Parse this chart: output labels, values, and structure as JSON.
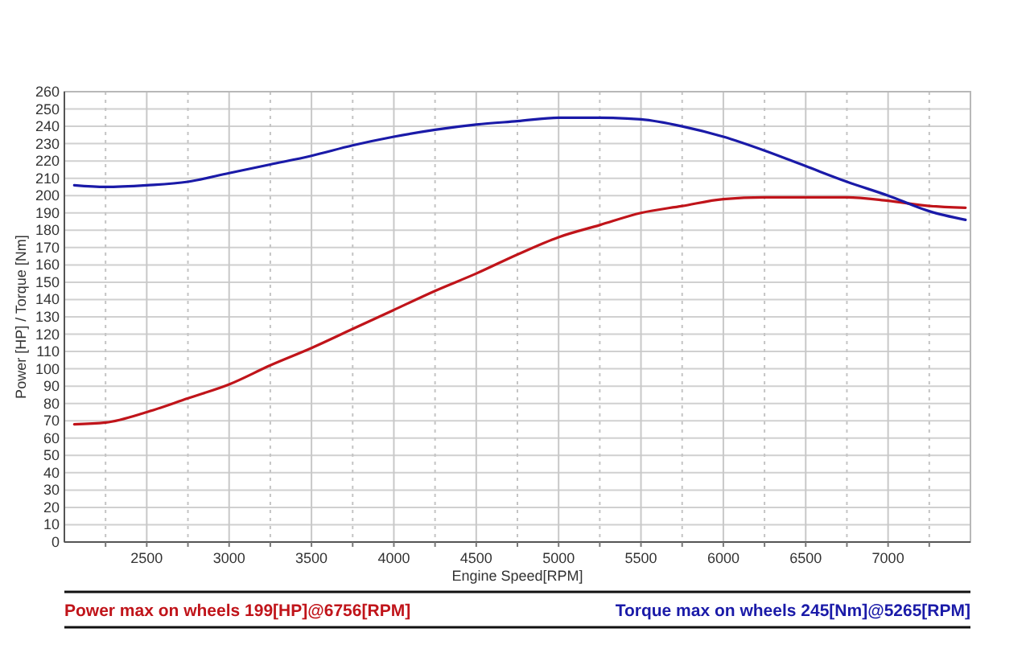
{
  "chart_data": {
    "type": "line",
    "xlabel": "Engine Speed[RPM]",
    "ylabel": "Power [HP] / Torque [Nm]",
    "xlim": [
      2000,
      7500
    ],
    "ylim": [
      0,
      260
    ],
    "xticks": [
      {
        "value": 2250,
        "label": null
      },
      2500,
      {
        "value": 2750,
        "label": null
      },
      3000,
      {
        "value": 3250,
        "label": null
      },
      3500,
      {
        "value": 3750,
        "label": null
      },
      4000,
      {
        "value": 4250,
        "label": null
      },
      4500,
      {
        "value": 4750,
        "label": null
      },
      5000,
      {
        "value": 5250,
        "label": null
      },
      5500,
      {
        "value": 5750,
        "label": null
      },
      6000,
      {
        "value": 6250,
        "label": null
      },
      6500,
      {
        "value": 6750,
        "label": null
      },
      7000,
      {
        "value": 7250,
        "label": null
      }
    ],
    "yticks": [
      0,
      10,
      20,
      30,
      40,
      50,
      60,
      70,
      80,
      90,
      100,
      110,
      120,
      130,
      140,
      150,
      160,
      170,
      180,
      190,
      200,
      210,
      220,
      230,
      240,
      250,
      260
    ],
    "grid": true,
    "series": [
      {
        "color": "#c0141a",
        "x": [
          2060,
          2250,
          2500,
          2750,
          3000,
          3250,
          3500,
          3750,
          4000,
          4250,
          4500,
          4750,
          5000,
          5250,
          5500,
          5750,
          6000,
          6250,
          6500,
          6750,
          7000,
          7250,
          7470
        ],
        "values": [
          68,
          69,
          75,
          83,
          91,
          102,
          112,
          123,
          134,
          145,
          155,
          166,
          176,
          183,
          190,
          194,
          198,
          199,
          199,
          199,
          197,
          194,
          193
        ]
      },
      {
        "color": "#1a1aa8",
        "x": [
          2060,
          2250,
          2500,
          2750,
          3000,
          3250,
          3500,
          3750,
          4000,
          4250,
          4500,
          4750,
          5000,
          5250,
          5500,
          5750,
          6000,
          6250,
          6500,
          6750,
          7000,
          7250,
          7470
        ],
        "values": [
          206,
          205,
          206,
          208,
          213,
          218,
          223,
          229,
          234,
          238,
          241,
          243,
          245,
          245,
          244,
          240,
          234,
          226,
          217,
          208,
          200,
          191,
          186
        ]
      }
    ],
    "annotations": [
      "Power max on wheels 199[HP]@6756[RPM]",
      "Torque max on wheels 245[Nm]@5265[RPM]"
    ]
  }
}
